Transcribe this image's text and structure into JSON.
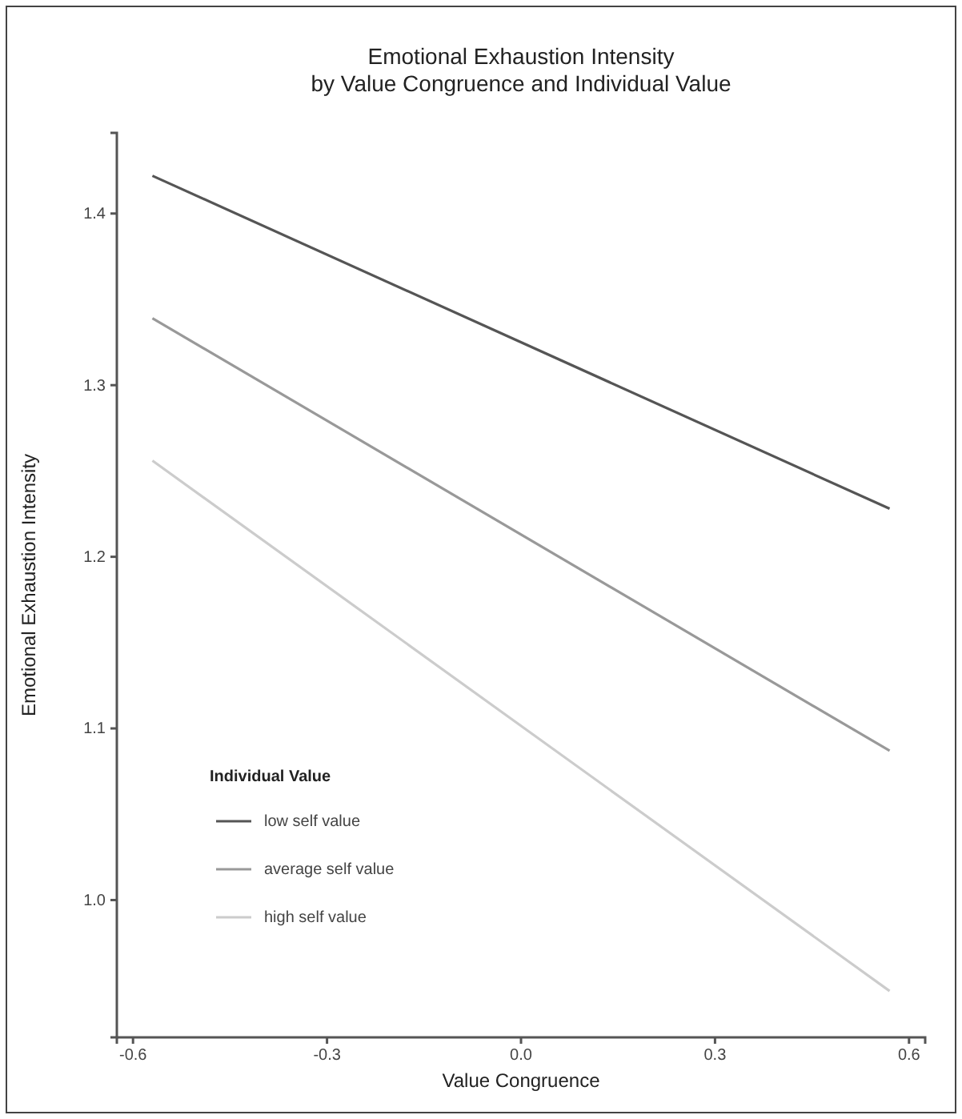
{
  "chart_data": {
    "type": "line",
    "title": "Emotional Exhaustion Intensity\nby Value Congruence and Individual Value",
    "xlabel": "Value Congruence",
    "ylabel": "Emotional Exhaustion Intensity",
    "legend_title": "Individual Value",
    "x": [
      -0.57,
      0.57
    ],
    "series": [
      {
        "name": "low self value",
        "color": "#555555",
        "values": [
          1.422,
          1.228
        ]
      },
      {
        "name": "average self value",
        "color": "#999999",
        "values": [
          1.339,
          1.087
        ]
      },
      {
        "name": "high self value",
        "color": "#cccccc",
        "values": [
          1.256,
          0.947
        ]
      }
    ],
    "xlim": [
      -0.625,
      0.625
    ],
    "xticks": [
      {
        "value": -0.6,
        "label": "-0.6"
      },
      {
        "value": -0.3,
        "label": "-0.3"
      },
      {
        "value": 0,
        "label": "0.0"
      },
      {
        "value": 0.3,
        "label": "0.3"
      },
      {
        "value": 0.6,
        "label": "0.6"
      }
    ],
    "ylim": [
      0.92,
      1.447
    ],
    "yticks": [
      {
        "value": 1.0,
        "label": "1.0"
      },
      {
        "value": 1.1,
        "label": "1.1"
      },
      {
        "value": 1.2,
        "label": "1.2"
      },
      {
        "value": 1.3,
        "label": "1.3"
      },
      {
        "value": 1.4,
        "label": "1.4"
      }
    ],
    "grid": false,
    "legend": "bottom left",
    "line_style": "solid",
    "marker": "none"
  }
}
